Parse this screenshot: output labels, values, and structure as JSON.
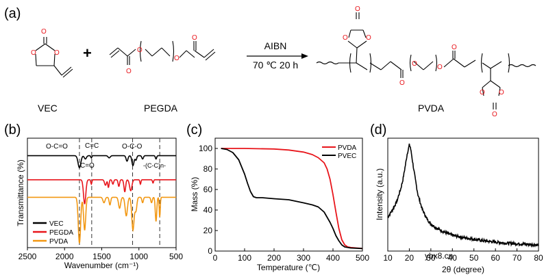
{
  "panel_a": {
    "label": "(a)",
    "reactant1_name": "VEC",
    "plus": "+",
    "reactant2_name": "PEGDA",
    "reagent": "AIBN",
    "conditions": "70 ℃ 20 h",
    "product_name": "PVDA",
    "atoms": {
      "O": "O"
    }
  },
  "watermark": "ybx8.cn",
  "chart_data": [
    {
      "panel": "(b)",
      "type": "line",
      "xlabel": "Wavenumber (cm⁻¹)",
      "ylabel": "Transmittance (%)",
      "xlim": [
        2500,
        500
      ],
      "xticks": [
        2500,
        2000,
        1500,
        1000,
        500
      ],
      "reference_lines": [
        1800,
        1635,
        1085,
        720
      ],
      "annotations": [
        "O-C=O",
        "C=C",
        "O-C-O",
        "C=O",
        "-(C-C)n-"
      ],
      "legend": [
        "VEC",
        "PEGDA",
        "PVDA"
      ],
      "series": [
        {
          "name": "VEC",
          "color": "#000000",
          "baseline": 0.84,
          "peaks": [
            [
              1800,
              0.11,
              26
            ],
            [
              1720,
              0.03,
              20
            ],
            [
              1640,
              0.02,
              10
            ],
            [
              1400,
              0.02,
              20
            ],
            [
              1160,
              0.05,
              18
            ],
            [
              1080,
              0.09,
              20
            ],
            [
              1040,
              0.04,
              15
            ],
            [
              950,
              0.03,
              15
            ],
            [
              770,
              0.03,
              12
            ]
          ]
        },
        {
          "name": "PEGDA",
          "color": "#e8141a",
          "baseline": 0.62,
          "peaks": [
            [
              1730,
              0.22,
              22
            ],
            [
              1640,
              0.04,
              10
            ],
            [
              1450,
              0.05,
              18
            ],
            [
              1410,
              0.07,
              12
            ],
            [
              1350,
              0.04,
              14
            ],
            [
              1270,
              0.06,
              14
            ],
            [
              1190,
              0.11,
              16
            ],
            [
              1110,
              0.1,
              22
            ],
            [
              980,
              0.04,
              10
            ],
            [
              810,
              0.03,
              10
            ]
          ]
        },
        {
          "name": "PVDA",
          "color": "#f29711",
          "baseline": 0.46,
          "peaks": [
            [
              1800,
              0.42,
              22
            ],
            [
              1730,
              0.3,
              20
            ],
            [
              1470,
              0.05,
              20
            ],
            [
              1390,
              0.07,
              15
            ],
            [
              1260,
              0.1,
              20
            ],
            [
              1170,
              0.17,
              22
            ],
            [
              1080,
              0.3,
              22
            ],
            [
              1040,
              0.12,
              18
            ],
            [
              950,
              0.05,
              14
            ],
            [
              830,
              0.05,
              14
            ],
            [
              770,
              0.22,
              14
            ],
            [
              720,
              0.18,
              10
            ]
          ]
        }
      ]
    },
    {
      "panel": "(c)",
      "type": "line",
      "xlabel": "Temperature (℃)",
      "ylabel": "Mass (%)",
      "xlim": [
        0,
        500
      ],
      "ylim": [
        0,
        110
      ],
      "xticks": [
        0,
        100,
        200,
        300,
        400,
        500
      ],
      "yticks": [
        0,
        20,
        40,
        60,
        80,
        100
      ],
      "legend": [
        "PVDA",
        "PVEC"
      ],
      "series": [
        {
          "name": "PVDA",
          "color": "#e8141a",
          "x": [
            20,
            100,
            200,
            250,
            300,
            330,
            350,
            370,
            380,
            390,
            400,
            410,
            420,
            430,
            440,
            450,
            460,
            480,
            500
          ],
          "y": [
            100,
            100,
            99.5,
            98.5,
            96.5,
            94,
            91,
            86,
            80,
            70,
            55,
            38,
            22,
            11,
            6,
            4,
            3.5,
            3,
            2.5
          ]
        },
        {
          "name": "PVEC",
          "color": "#000000",
          "x": [
            20,
            40,
            60,
            80,
            100,
            110,
            120,
            130,
            140,
            160,
            200,
            250,
            300,
            330,
            350,
            370,
            390,
            400,
            410,
            420,
            430,
            440,
            460,
            500
          ],
          "y": [
            100,
            99,
            96,
            89,
            75,
            66,
            58,
            53,
            52,
            52,
            51,
            50,
            47,
            45,
            43,
            38,
            28,
            22,
            15,
            10,
            6,
            4,
            3,
            2.5
          ]
        }
      ]
    },
    {
      "panel": "(d)",
      "type": "line",
      "xlabel": "2θ (degree)",
      "ylabel": "Intensity (a.u.)",
      "xlim": [
        10,
        80
      ],
      "xticks": [
        10,
        20,
        30,
        40,
        50,
        60,
        70,
        80
      ],
      "legend": [],
      "series": [
        {
          "name": "PVDA",
          "color": "#000000",
          "x": [
            10,
            12,
            14,
            16,
            17,
            18,
            19,
            20,
            20.5,
            21,
            22,
            23,
            24,
            26,
            28,
            30,
            33,
            36,
            40,
            45,
            50,
            55,
            60,
            65,
            70,
            75,
            80
          ],
          "y": [
            0.3,
            0.36,
            0.43,
            0.55,
            0.63,
            0.74,
            0.86,
            0.94,
            0.92,
            0.86,
            0.73,
            0.61,
            0.5,
            0.37,
            0.29,
            0.24,
            0.2,
            0.17,
            0.14,
            0.12,
            0.105,
            0.09,
            0.08,
            0.07,
            0.065,
            0.06,
            0.055
          ]
        }
      ]
    }
  ]
}
